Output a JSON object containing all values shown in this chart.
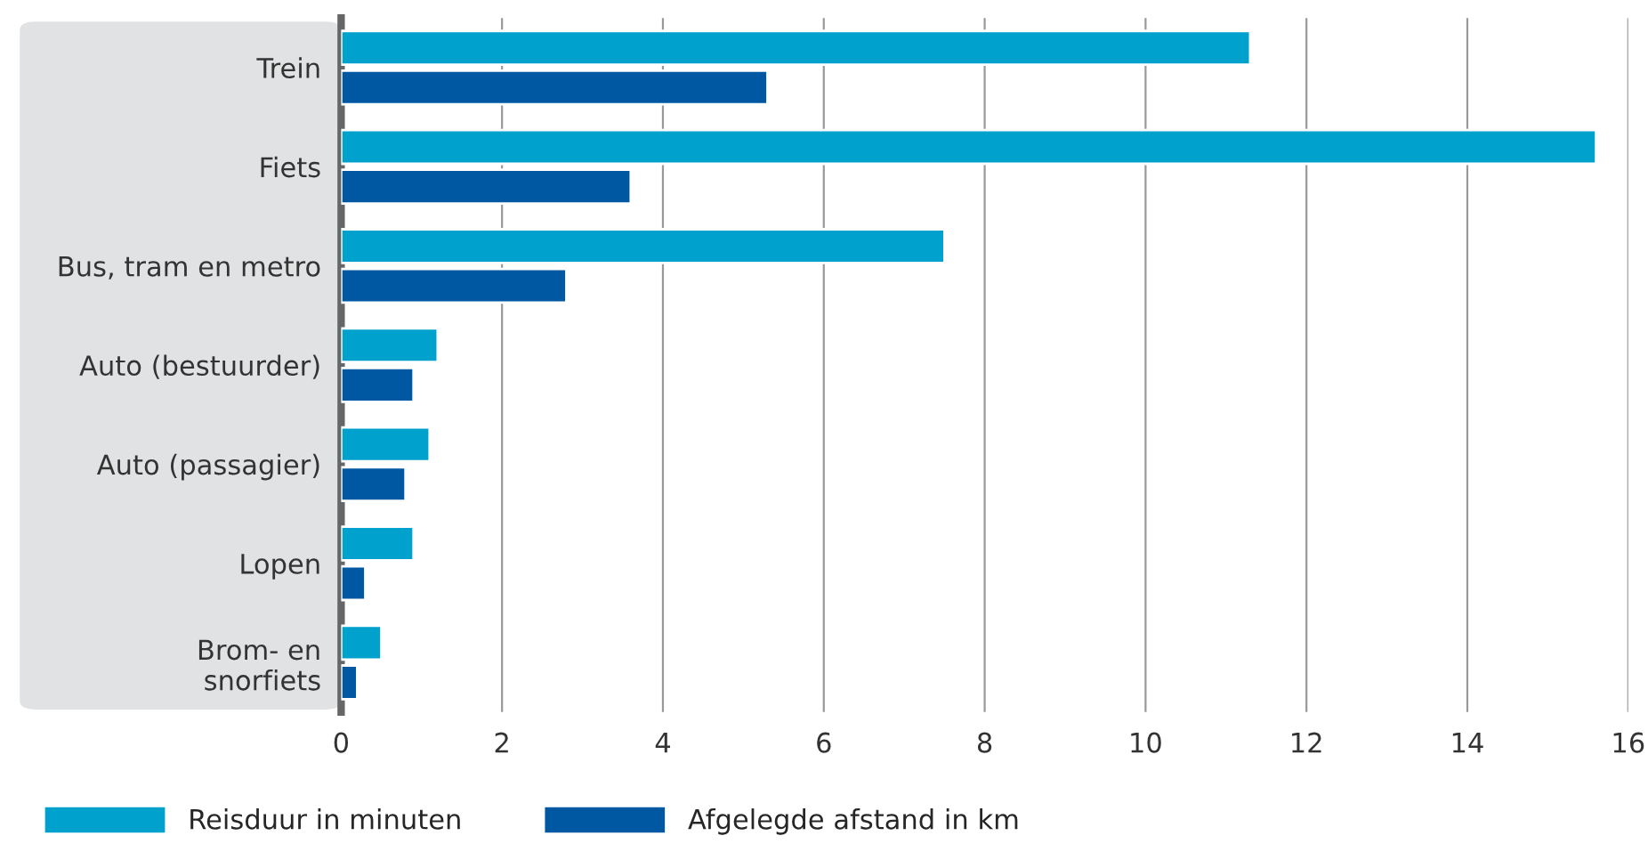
{
  "chart_data": {
    "type": "bar",
    "orientation": "horizontal",
    "categories": [
      "Trein",
      "Fiets",
      "Bus, tram en metro",
      "Auto (bestuurder)",
      "Auto (passagier)",
      "Lopen",
      "Brom- en\nsnorfiets"
    ],
    "series": [
      {
        "name": "Reisduur in minuten",
        "color": "#00a1cd",
        "values": [
          11.3,
          15.6,
          7.5,
          1.2,
          1.1,
          0.9,
          0.5
        ]
      },
      {
        "name": "Afgelegde afstand in km",
        "color": "#0058a3",
        "values": [
          5.3,
          3.6,
          2.8,
          0.9,
          0.8,
          0.3,
          0.2
        ]
      }
    ],
    "xlim": [
      0,
      16
    ],
    "xticks": [
      0,
      2,
      4,
      6,
      8,
      10,
      12,
      14,
      16
    ],
    "grid": "x",
    "legend": "bottom left"
  }
}
